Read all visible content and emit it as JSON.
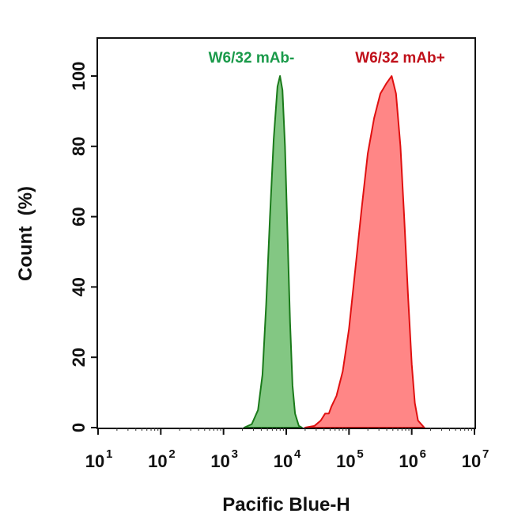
{
  "chart_data": {
    "type": "area",
    "title": "",
    "xlabel": "Pacific Blue-H",
    "ylabel": "Count  (%)",
    "x_scale": "log10",
    "xlim_log10": [
      1,
      7
    ],
    "ylim": [
      0,
      100
    ],
    "x_tick_base": "10",
    "x_tick_exponents": [
      "1",
      "2",
      "3",
      "4",
      "5",
      "6",
      "7"
    ],
    "y_ticks": [
      "0",
      "20",
      "40",
      "60",
      "80",
      "100"
    ],
    "grid": false,
    "series": [
      {
        "name": "W6/32 mAb-",
        "line_color": "#1a7a1a",
        "fill_color": "#7cc47c",
        "label_color": "#1a9a4a",
        "x_log10": [
          3.33,
          3.45,
          3.55,
          3.62,
          3.68,
          3.74,
          3.8,
          3.86,
          3.9,
          3.94,
          3.98,
          4.02,
          4.06,
          4.1,
          4.14,
          4.2,
          4.25
        ],
        "y": [
          0,
          1,
          5,
          15,
          35,
          60,
          82,
          97,
          100,
          96,
          80,
          55,
          30,
          12,
          4,
          0.5,
          0
        ]
      },
      {
        "name": "W6/32 mAb+",
        "line_color": "#e01010",
        "fill_color": "#ff8080",
        "label_color": "#c0101a",
        "x_log10": [
          4.3,
          4.45,
          4.55,
          4.62,
          4.68,
          4.72,
          4.8,
          4.9,
          5.0,
          5.1,
          5.2,
          5.3,
          5.4,
          5.5,
          5.6,
          5.68,
          5.75,
          5.82,
          5.88,
          5.94,
          6.0,
          6.05,
          6.1,
          6.2
        ],
        "y": [
          0,
          0.5,
          2,
          4,
          4,
          6,
          9,
          16,
          28,
          45,
          62,
          78,
          88,
          95,
          98,
          100,
          95,
          80,
          60,
          38,
          18,
          7,
          2,
          0
        ]
      }
    ]
  }
}
